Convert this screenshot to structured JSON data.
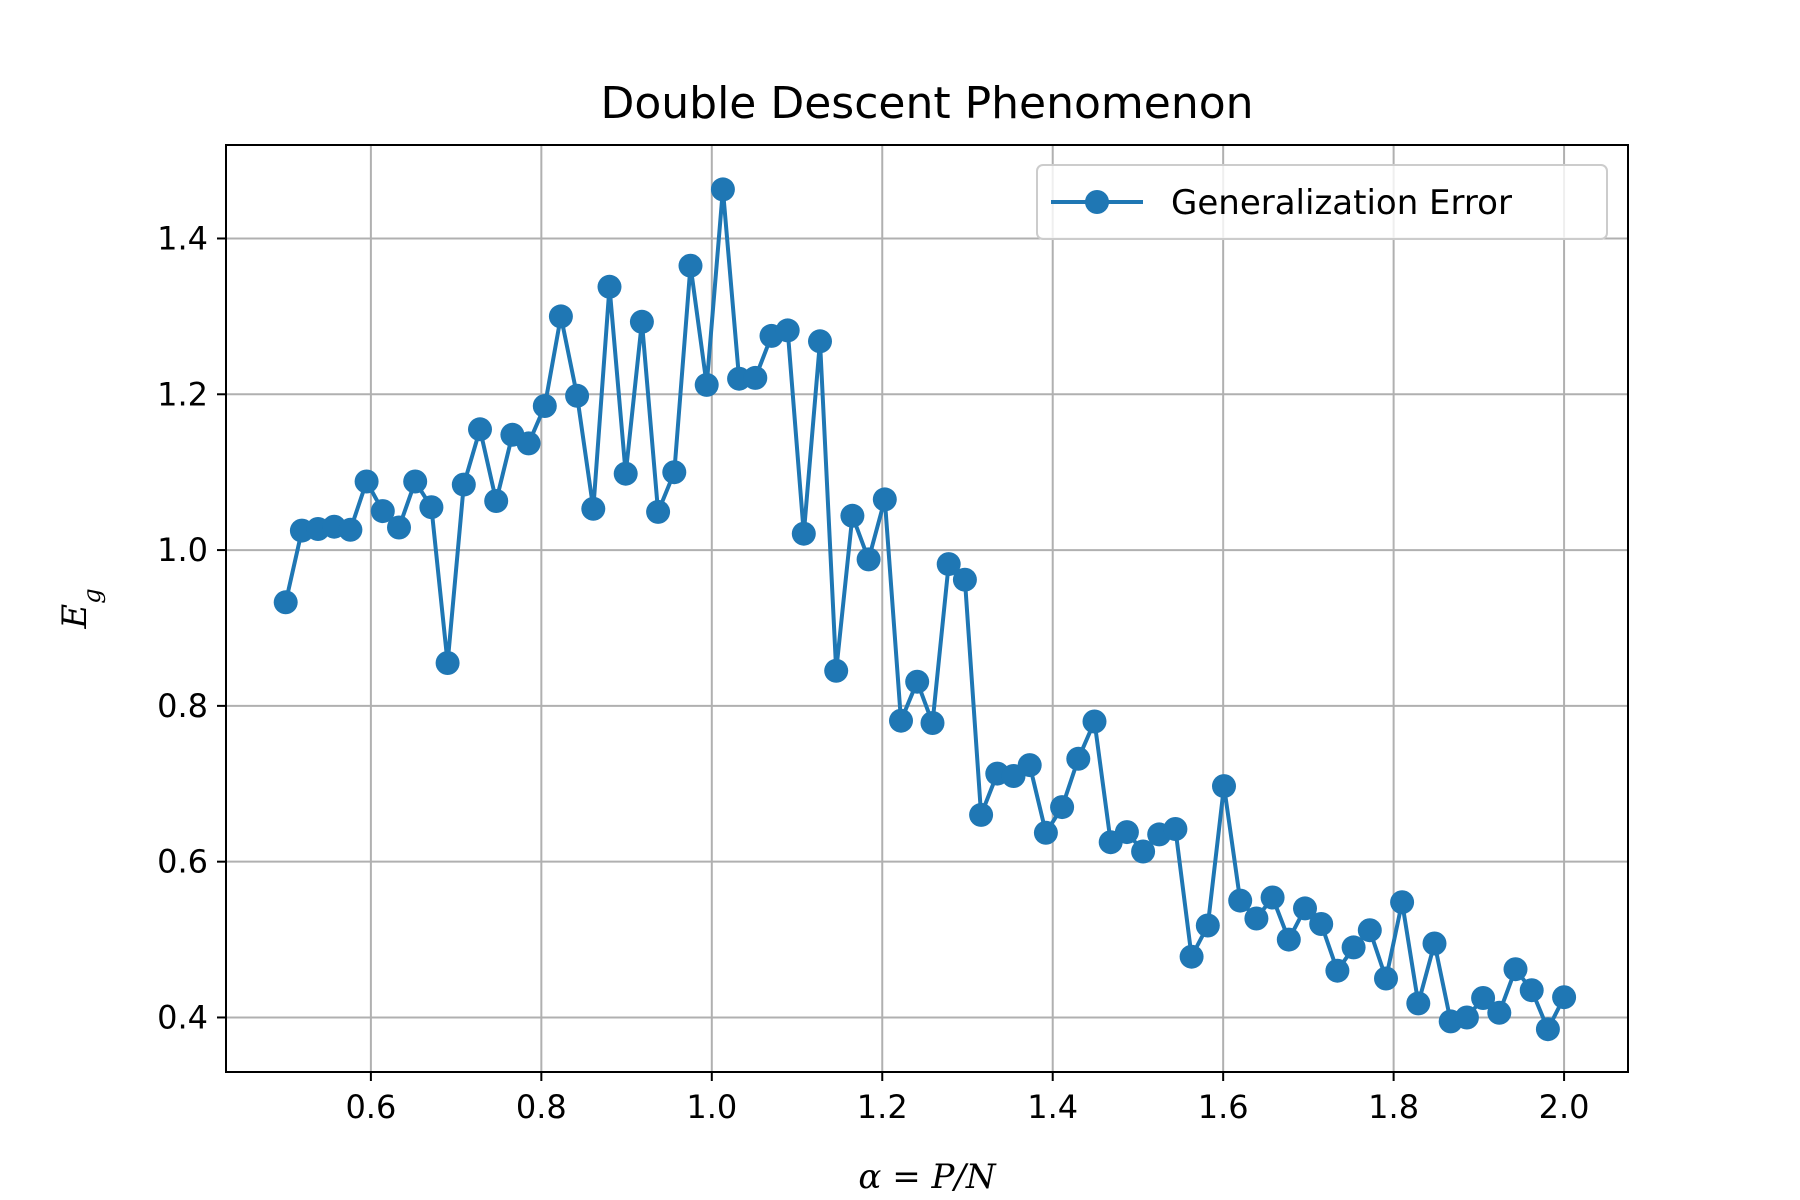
{
  "chart_data": {
    "type": "line",
    "title": "Double Descent Phenomenon",
    "xlabel": "α = P/N",
    "ylabel": "E_g",
    "xlim": [
      0.43,
      2.075
    ],
    "ylim": [
      0.33,
      1.52
    ],
    "xticks": [
      0.6,
      0.8,
      1.0,
      1.2,
      1.4,
      1.6,
      1.8,
      2.0
    ],
    "yticks": [
      0.4,
      0.6,
      0.8,
      1.0,
      1.2,
      1.4
    ],
    "xtick_labels": [
      "0.6",
      "0.8",
      "1.0",
      "1.2",
      "1.4",
      "1.6",
      "1.8",
      "2.0"
    ],
    "ytick_labels": [
      "0.4",
      "0.6",
      "0.8",
      "1.0",
      "1.2",
      "1.4"
    ],
    "grid": true,
    "legend": "top-right",
    "color": "#1f77b4",
    "series": [
      {
        "name": "Generalization Error",
        "x": [
          0.5,
          0.519,
          0.538,
          0.557,
          0.576,
          0.595,
          0.614,
          0.633,
          0.652,
          0.671,
          0.69,
          0.709,
          0.728,
          0.747,
          0.766,
          0.785,
          0.804,
          0.823,
          0.842,
          0.861,
          0.88,
          0.899,
          0.918,
          0.937,
          0.956,
          0.975,
          0.994,
          1.013,
          1.032,
          1.051,
          1.07,
          1.089,
          1.108,
          1.127,
          1.146,
          1.165,
          1.184,
          1.203,
          1.222,
          1.241,
          1.259,
          1.278,
          1.297,
          1.316,
          1.335,
          1.354,
          1.373,
          1.392,
          1.411,
          1.43,
          1.449,
          1.468,
          1.487,
          1.506,
          1.525,
          1.544,
          1.563,
          1.582,
          1.601,
          1.62,
          1.639,
          1.658,
          1.677,
          1.696,
          1.715,
          1.734,
          1.753,
          1.772,
          1.791,
          1.81,
          1.829,
          1.848,
          1.867,
          1.886,
          1.905,
          1.924,
          1.943,
          1.962,
          1.981,
          2.0
        ],
        "values": [
          0.933,
          1.025,
          1.027,
          1.03,
          1.026,
          1.088,
          1.05,
          1.029,
          1.088,
          1.055,
          0.855,
          1.084,
          1.155,
          1.063,
          1.148,
          1.137,
          1.185,
          1.3,
          1.198,
          1.053,
          1.338,
          1.098,
          1.293,
          1.049,
          1.1,
          1.365,
          1.212,
          1.463,
          1.22,
          1.221,
          1.275,
          1.282,
          1.021,
          1.268,
          0.845,
          1.044,
          0.988,
          1.065,
          0.781,
          0.831,
          0.778,
          0.982,
          0.962,
          0.66,
          0.713,
          0.71,
          0.724,
          0.637,
          0.67,
          0.732,
          0.78,
          0.625,
          0.638,
          0.613,
          0.635,
          0.642,
          0.478,
          0.518,
          0.697,
          0.55,
          0.527,
          0.554,
          0.5,
          0.54,
          0.52,
          0.46,
          0.49,
          0.512,
          0.45,
          0.548,
          0.418,
          0.495,
          0.395,
          0.4,
          0.425,
          0.406,
          0.462,
          0.435,
          0.385,
          0.426
        ]
      }
    ]
  }
}
